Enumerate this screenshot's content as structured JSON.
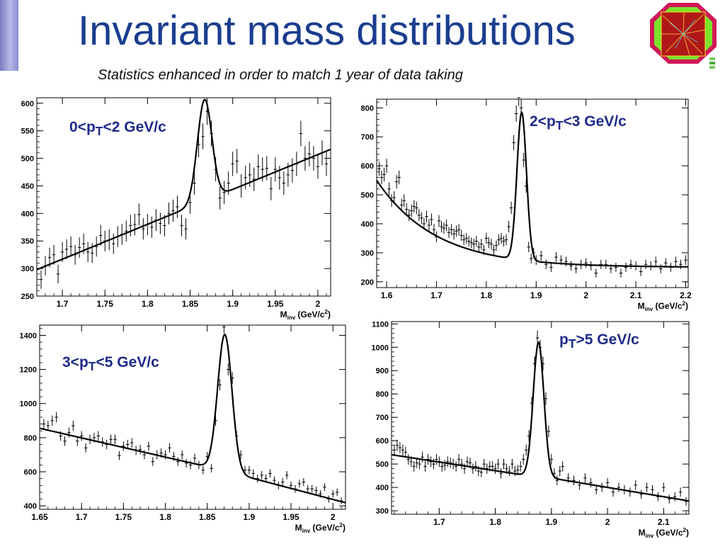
{
  "header": {
    "title": "Invariant mass distributions",
    "subtitle": "Statistics enhanced in order to match 1 year of data taking"
  },
  "colors": {
    "title": "#1a3d8f",
    "pt_label": "#1f2b8a",
    "accent_bar": "#9a9ad8",
    "logo_border": "#d01858",
    "logo_fill": "#7ae22b"
  },
  "icons": {
    "logo": "collision-event-display-icon",
    "nav": "slide-navigation-icon"
  },
  "chart_data": [
    {
      "type": "scatter",
      "pt_label": {
        "pre": "0<p",
        "sub": "T",
        "post": "<2 GeV/c"
      },
      "xlabel": {
        "main": "M",
        "sub": "inv",
        "unit_pre": " (GeV/c",
        "sup": "2",
        "unit_post": ")"
      },
      "xlim": [
        1.67,
        2.015
      ],
      "ylim": [
        250,
        610
      ],
      "xticks": [
        1.7,
        1.75,
        1.8,
        1.85,
        1.9,
        1.95,
        2
      ],
      "xtick_labels": [
        "1.7",
        "1.75",
        "1.8",
        "1.85",
        "1.9",
        "1.95",
        "2"
      ],
      "yticks": [
        250,
        300,
        350,
        400,
        450,
        500,
        550,
        600
      ],
      "ytick_labels": [
        "250",
        "300",
        "350",
        "400",
        "450",
        "500",
        "550",
        "600"
      ],
      "x": [
        1.675,
        1.68,
        1.685,
        1.69,
        1.695,
        1.7,
        1.705,
        1.71,
        1.715,
        1.72,
        1.725,
        1.73,
        1.735,
        1.74,
        1.745,
        1.75,
        1.755,
        1.76,
        1.765,
        1.77,
        1.775,
        1.78,
        1.785,
        1.79,
        1.795,
        1.8,
        1.805,
        1.81,
        1.815,
        1.82,
        1.825,
        1.83,
        1.835,
        1.84,
        1.845,
        1.85,
        1.855,
        1.86,
        1.865,
        1.87,
        1.875,
        1.88,
        1.885,
        1.89,
        1.895,
        1.9,
        1.905,
        1.91,
        1.915,
        1.92,
        1.925,
        1.93,
        1.935,
        1.94,
        1.945,
        1.95,
        1.955,
        1.96,
        1.965,
        1.97,
        1.975,
        1.98,
        1.985,
        1.99,
        1.995,
        2.0,
        2.005,
        2.01
      ],
      "y": [
        280,
        305,
        320,
        325,
        290,
        330,
        335,
        340,
        325,
        338,
        345,
        330,
        328,
        340,
        360,
        350,
        352,
        345,
        358,
        362,
        368,
        378,
        380,
        398,
        372,
        380,
        375,
        388,
        382,
        378,
        400,
        405,
        412,
        378,
        372,
        420,
        455,
        525,
        540,
        585,
        545,
        480,
        428,
        438,
        455,
        490,
        495,
        450,
        465,
        470,
        462,
        485,
        480,
        482,
        445,
        480,
        465,
        455,
        470,
        478,
        490,
        545,
        500,
        508,
        500,
        485,
        510,
        490
      ],
      "fit": {
        "bg_intercept_at_1_67": 298,
        "bg_slope_per_GeV": 633,
        "peak_mean": 1.867,
        "peak_sigma": 0.0085,
        "peak_amplitude": 184
      }
    },
    {
      "type": "scatter",
      "pt_label": {
        "pre": "2<p",
        "sub": "T",
        "post": "<3 GeV/c"
      },
      "xlabel": {
        "main": "M",
        "sub": "inv",
        "unit_pre": " (GeV/c",
        "sup": "2",
        "unit_post": ")"
      },
      "xlim": [
        1.58,
        2.205
      ],
      "ylim": [
        180,
        830
      ],
      "xticks": [
        1.6,
        1.7,
        1.8,
        1.9,
        2,
        2.1,
        2.2
      ],
      "xtick_labels": [
        "1.6",
        "1.7",
        "1.8",
        "1.9",
        "2",
        "2.1",
        "2.2"
      ],
      "yticks": [
        200,
        300,
        400,
        500,
        600,
        700,
        800
      ],
      "ytick_labels": [
        "200",
        "300",
        "400",
        "500",
        "600",
        "700",
        "800"
      ],
      "x": [
        1.585,
        1.59,
        1.595,
        1.6,
        1.605,
        1.61,
        1.615,
        1.62,
        1.625,
        1.63,
        1.635,
        1.64,
        1.645,
        1.65,
        1.655,
        1.66,
        1.665,
        1.67,
        1.675,
        1.68,
        1.685,
        1.69,
        1.695,
        1.7,
        1.705,
        1.71,
        1.715,
        1.72,
        1.725,
        1.73,
        1.735,
        1.74,
        1.745,
        1.75,
        1.755,
        1.76,
        1.765,
        1.77,
        1.775,
        1.78,
        1.785,
        1.79,
        1.795,
        1.8,
        1.805,
        1.81,
        1.815,
        1.82,
        1.825,
        1.83,
        1.835,
        1.84,
        1.845,
        1.85,
        1.855,
        1.86,
        1.865,
        1.87,
        1.875,
        1.88,
        1.885,
        1.89,
        1.895,
        1.9,
        1.91,
        1.92,
        1.93,
        1.94,
        1.95,
        1.96,
        1.97,
        1.98,
        1.99,
        2.0,
        2.01,
        2.02,
        2.03,
        2.04,
        2.05,
        2.06,
        2.07,
        2.08,
        2.09,
        2.1,
        2.11,
        2.12,
        2.13,
        2.14,
        2.15,
        2.16,
        2.17,
        2.18,
        2.19,
        2.2
      ],
      "y": [
        590,
        560,
        570,
        600,
        520,
        480,
        490,
        545,
        560,
        465,
        480,
        450,
        430,
        445,
        460,
        455,
        430,
        420,
        400,
        425,
        395,
        415,
        380,
        355,
        410,
        390,
        385,
        395,
        370,
        380,
        365,
        375,
        380,
        360,
        345,
        350,
        340,
        335,
        330,
        340,
        320,
        330,
        310,
        350,
        335,
        330,
        310,
        325,
        345,
        350,
        340,
        345,
        390,
        455,
        680,
        780,
        835,
        800,
        620,
        530,
        320,
        280,
        300,
        275,
        290,
        260,
        250,
        285,
        275,
        270,
        255,
        245,
        260,
        265,
        255,
        230,
        260,
        260,
        245,
        250,
        230,
        250,
        260,
        255,
        235,
        260,
        255,
        270,
        245,
        265,
        250,
        270,
        260,
        275
      ],
      "fit": {
        "bg_a": 300,
        "bg_b": 250,
        "bg_k": 8.5,
        "peak_mean": 1.871,
        "peak_sigma": 0.0095,
        "peak_amplitude": 510
      }
    },
    {
      "type": "scatter",
      "pt_label": {
        "pre": "3<p",
        "sub": "T",
        "post": "<5 GeV/c"
      },
      "xlabel": {
        "main": "M",
        "sub": "inv",
        "unit_pre": " (GeV/c",
        "sup": "2",
        "unit_post": ")"
      },
      "xlim": [
        1.65,
        2.015
      ],
      "ylim": [
        380,
        1460
      ],
      "xticks": [
        1.65,
        1.7,
        1.75,
        1.8,
        1.85,
        1.9,
        1.95,
        2
      ],
      "xtick_labels": [
        "1.65",
        "1.7",
        "1.75",
        "1.8",
        "1.85",
        "1.9",
        "1.95",
        "2"
      ],
      "yticks": [
        400,
        600,
        800,
        1000,
        1200,
        1400
      ],
      "ytick_labels": [
        "400",
        "600",
        "800",
        "1000",
        "1200",
        "1400"
      ],
      "x": [
        1.655,
        1.66,
        1.665,
        1.67,
        1.675,
        1.68,
        1.685,
        1.69,
        1.695,
        1.7,
        1.705,
        1.71,
        1.715,
        1.72,
        1.725,
        1.73,
        1.735,
        1.74,
        1.745,
        1.75,
        1.755,
        1.76,
        1.765,
        1.77,
        1.775,
        1.78,
        1.785,
        1.79,
        1.795,
        1.8,
        1.805,
        1.81,
        1.815,
        1.82,
        1.825,
        1.83,
        1.835,
        1.84,
        1.845,
        1.85,
        1.855,
        1.86,
        1.865,
        1.87,
        1.875,
        1.88,
        1.885,
        1.89,
        1.895,
        1.9,
        1.905,
        1.91,
        1.915,
        1.92,
        1.925,
        1.93,
        1.935,
        1.94,
        1.945,
        1.95,
        1.955,
        1.96,
        1.965,
        1.97,
        1.975,
        1.98,
        1.985,
        1.99,
        1.995,
        2.0,
        2.005,
        2.01
      ],
      "y": [
        880,
        870,
        900,
        920,
        810,
        780,
        830,
        870,
        780,
        810,
        740,
        790,
        800,
        810,
        775,
        760,
        790,
        790,
        695,
        750,
        760,
        770,
        725,
        730,
        700,
        750,
        660,
        700,
        710,
        700,
        740,
        690,
        660,
        700,
        650,
        640,
        680,
        640,
        610,
        690,
        620,
        900,
        1110,
        1450,
        1200,
        1150,
        810,
        700,
        610,
        610,
        590,
        560,
        580,
        560,
        590,
        550,
        520,
        540,
        580,
        520,
        500,
        530,
        540,
        500,
        500,
        490,
        470,
        510,
        440,
        470,
        480,
        430
      ]
    },
    {
      "type": "scatter",
      "pt_label": {
        "pre": "p",
        "sub": "T",
        "post": ">5 GeV/c"
      },
      "xlabel": {
        "main": "M",
        "sub": "inv",
        "unit_pre": " (GeV/c",
        "sup": "2",
        "unit_post": ")"
      },
      "xlim": [
        1.615,
        2.145
      ],
      "ylim": [
        285,
        1110
      ],
      "xticks": [
        1.7,
        1.8,
        1.9,
        2,
        2.1
      ],
      "xtick_labels": [
        "1.7",
        "1.8",
        "1.9",
        "2",
        "2.1"
      ],
      "yticks": [
        300,
        400,
        500,
        600,
        700,
        800,
        900,
        1000,
        1100
      ],
      "ytick_labels": [
        "300",
        "400",
        "500",
        "600",
        "700",
        "800",
        "900",
        "1000",
        "1100"
      ],
      "x": [
        1.62,
        1.625,
        1.63,
        1.635,
        1.64,
        1.645,
        1.65,
        1.655,
        1.66,
        1.665,
        1.67,
        1.675,
        1.68,
        1.685,
        1.69,
        1.695,
        1.7,
        1.705,
        1.71,
        1.715,
        1.72,
        1.725,
        1.73,
        1.735,
        1.74,
        1.745,
        1.75,
        1.755,
        1.76,
        1.765,
        1.77,
        1.775,
        1.78,
        1.785,
        1.79,
        1.795,
        1.8,
        1.805,
        1.81,
        1.815,
        1.82,
        1.825,
        1.83,
        1.835,
        1.84,
        1.845,
        1.85,
        1.855,
        1.86,
        1.865,
        1.87,
        1.875,
        1.88,
        1.885,
        1.89,
        1.895,
        1.9,
        1.905,
        1.91,
        1.915,
        1.92,
        1.93,
        1.94,
        1.95,
        1.96,
        1.97,
        1.98,
        1.99,
        2.0,
        2.01,
        2.02,
        2.03,
        2.04,
        2.05,
        2.06,
        2.07,
        2.08,
        2.09,
        2.1,
        2.11,
        2.12,
        2.13,
        2.14
      ],
      "y": [
        560,
        580,
        570,
        560,
        550,
        520,
        510,
        490,
        505,
        500,
        530,
        490,
        520,
        510,
        500,
        520,
        510,
        490,
        495,
        510,
        505,
        500,
        490,
        520,
        500,
        480,
        510,
        505,
        480,
        490,
        470,
        465,
        500,
        480,
        490,
        490,
        480,
        500,
        460,
        500,
        480,
        470,
        500,
        470,
        475,
        490,
        520,
        560,
        620,
        760,
        930,
        1040,
        1000,
        930,
        780,
        640,
        520,
        460,
        430,
        470,
        490,
        440,
        430,
        410,
        440,
        420,
        390,
        400,
        420,
        380,
        400,
        390,
        380,
        410,
        370,
        400,
        390,
        360,
        400,
        350,
        360,
        380,
        340
      ]
    }
  ]
}
